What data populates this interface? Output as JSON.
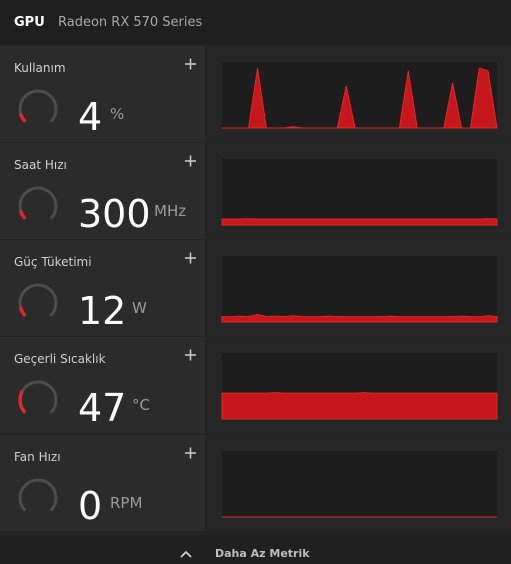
{
  "header": {
    "tab": "GPU",
    "device": "Radeon RX 570 Series"
  },
  "metrics": [
    {
      "label": "Kullanım",
      "value": 4,
      "unit": "%",
      "history": [
        0,
        0,
        0,
        0,
        100,
        0,
        0,
        0,
        2,
        0,
        0,
        0,
        0,
        0,
        70,
        0,
        0,
        0,
        0,
        0,
        0,
        95,
        0,
        0,
        0,
        0,
        75,
        0,
        0,
        100,
        95,
        0
      ]
    },
    {
      "label": "Saat Hızı",
      "value": 300,
      "unit": "MHz",
      "history": [
        300,
        300,
        300,
        310,
        300,
        300,
        300,
        300,
        300,
        300,
        300,
        300,
        300,
        300,
        300,
        300,
        300,
        300,
        300,
        300,
        300,
        300,
        300,
        300,
        300,
        300,
        300,
        300,
        300,
        300,
        320,
        300
      ]
    },
    {
      "label": "Güç Tüketimi",
      "value": 12,
      "unit": "W",
      "history": [
        12,
        12,
        13,
        12,
        17,
        12,
        13,
        12,
        14,
        12,
        12,
        12,
        13,
        12,
        12,
        12,
        12,
        12,
        12,
        13,
        12,
        12,
        12,
        12,
        12,
        12,
        12,
        13,
        12,
        12,
        14,
        12
      ]
    },
    {
      "label": "Geçerli Sıcaklık",
      "value": 47,
      "unit": "°C",
      "history": [
        47,
        47,
        47,
        47,
        47,
        47,
        48,
        47,
        47,
        47,
        47,
        47,
        47,
        47,
        47,
        47,
        48,
        47,
        47,
        47,
        47,
        47,
        47,
        47,
        47,
        47,
        47,
        47,
        47,
        47,
        47,
        47
      ]
    },
    {
      "label": "Fan Hızı",
      "value": 0,
      "unit": "RPM",
      "history": [
        0,
        0,
        0,
        0,
        0,
        0,
        0,
        0,
        0,
        0,
        0,
        0,
        0,
        0,
        0,
        0,
        0,
        0,
        0,
        0,
        0,
        0,
        0,
        0,
        0,
        0,
        0,
        0,
        0,
        0,
        0,
        0
      ]
    }
  ],
  "footer": {
    "toggle": "Daha Az Metrik"
  }
}
